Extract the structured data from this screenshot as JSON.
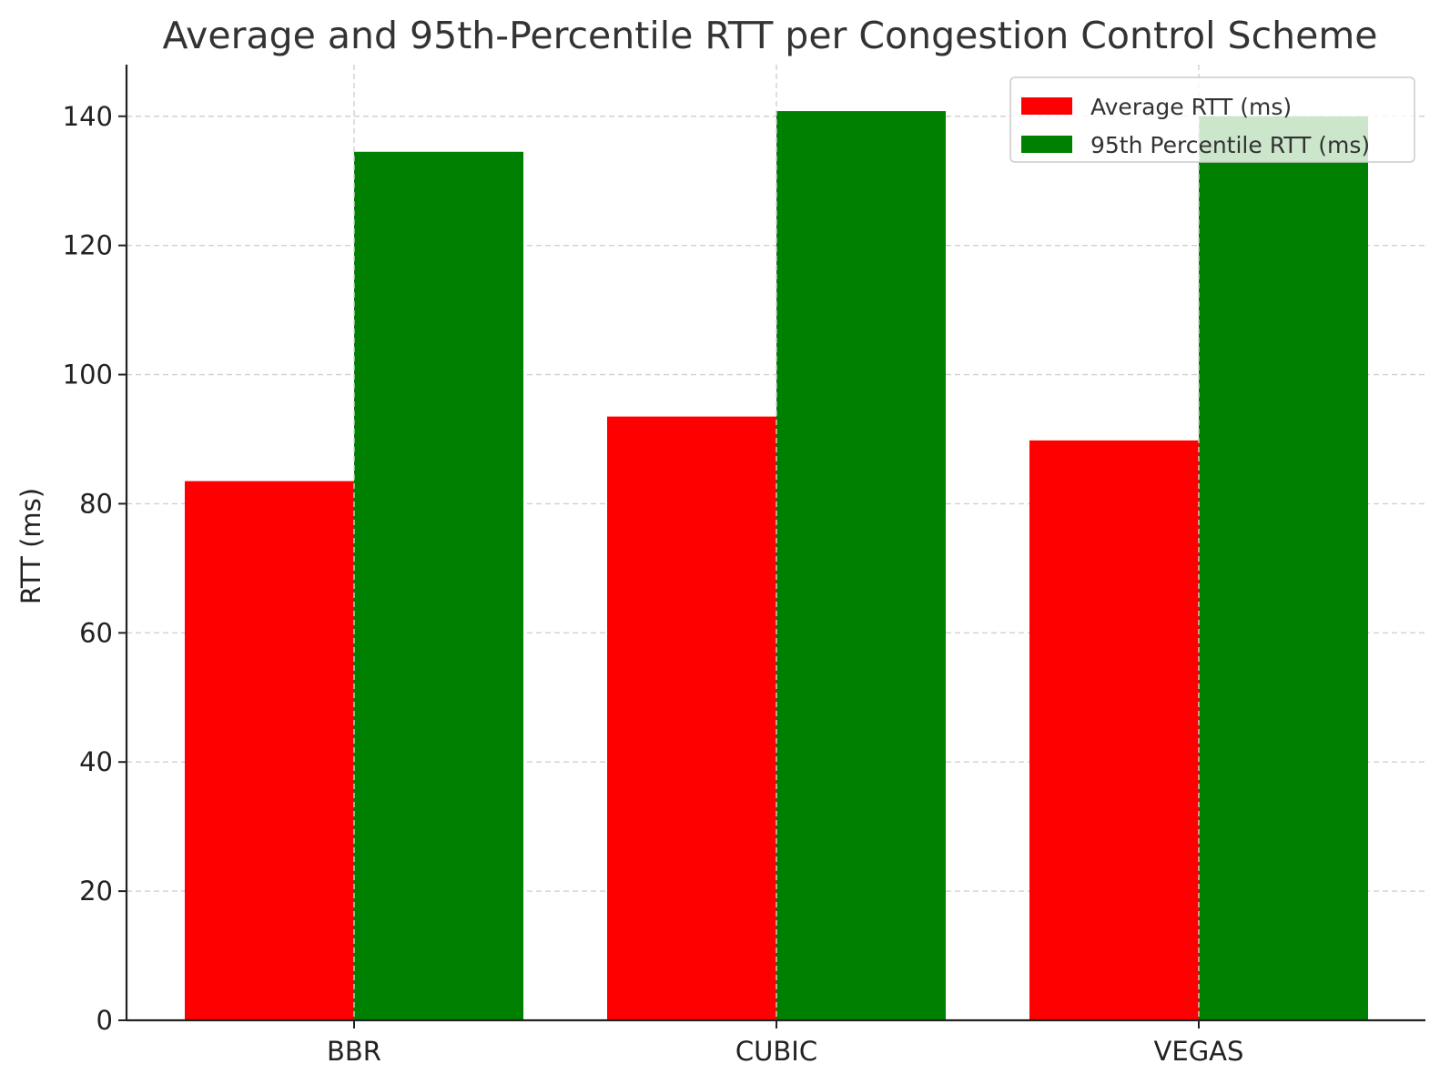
{
  "chart_data": {
    "type": "bar",
    "title": "Average and 95th-Percentile RTT per Congestion Control Scheme",
    "xlabel": "",
    "ylabel": "RTT (ms)",
    "categories": [
      "BBR",
      "CUBIC",
      "VEGAS"
    ],
    "series": [
      {
        "name": "Average RTT (ms)",
        "color": "#ff0000",
        "values": [
          83.5,
          93.5,
          89.8
        ]
      },
      {
        "name": "95th Percentile RTT (ms)",
        "color": "#008000",
        "values": [
          134.5,
          140.8,
          140.0
        ]
      }
    ],
    "ylim": [
      0,
      148
    ],
    "yticks": [
      0,
      20,
      40,
      60,
      80,
      100,
      120,
      140
    ],
    "grid": true,
    "legend_position": "top-right"
  }
}
